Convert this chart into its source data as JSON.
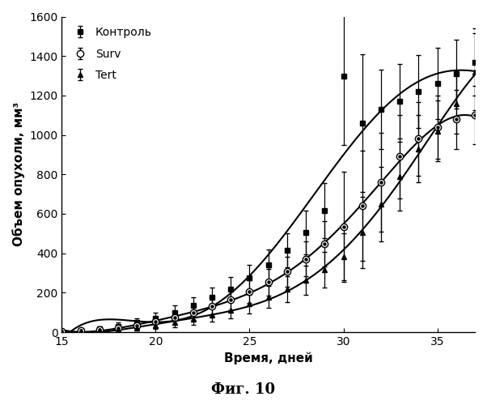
{
  "title": "",
  "xlabel": "Время, дней",
  "ylabel": "Объем опухоли, мм³",
  "caption": "Фиг. 10",
  "xlim": [
    15,
    37
  ],
  "ylim": [
    0,
    1600
  ],
  "xticks": [
    15,
    20,
    25,
    30,
    35
  ],
  "yticks": [
    0,
    200,
    400,
    600,
    800,
    1000,
    1200,
    1400,
    1600
  ],
  "legend_labels": [
    "Контроль",
    "Surv",
    "Tert"
  ],
  "control_x": [
    15,
    16,
    17,
    18,
    19,
    20,
    21,
    22,
    23,
    24,
    25,
    26,
    27,
    28,
    29,
    30,
    31,
    32,
    33,
    34,
    35,
    36,
    37
  ],
  "control_y": [
    5,
    10,
    18,
    30,
    48,
    72,
    100,
    135,
    175,
    220,
    275,
    340,
    415,
    505,
    615,
    1300,
    1060,
    1130,
    1170,
    1220,
    1260,
    1310,
    1370
  ],
  "control_yerr": [
    4,
    7,
    12,
    18,
    22,
    28,
    35,
    42,
    50,
    58,
    68,
    78,
    88,
    110,
    140,
    350,
    350,
    200,
    190,
    185,
    180,
    175,
    170
  ],
  "surv_x": [
    15,
    16,
    17,
    18,
    19,
    20,
    21,
    22,
    23,
    24,
    25,
    26,
    27,
    28,
    29,
    30,
    31,
    32,
    33,
    34,
    35,
    36,
    37
  ],
  "surv_y": [
    5,
    8,
    13,
    22,
    35,
    52,
    74,
    100,
    130,
    165,
    205,
    253,
    308,
    372,
    446,
    535,
    640,
    760,
    890,
    980,
    1040,
    1080,
    1100
  ],
  "surv_yerr": [
    3,
    6,
    10,
    15,
    20,
    25,
    32,
    38,
    46,
    52,
    58,
    66,
    76,
    90,
    115,
    280,
    280,
    250,
    210,
    185,
    160,
    150,
    148
  ],
  "tert_x": [
    15,
    16,
    17,
    18,
    19,
    20,
    21,
    22,
    23,
    24,
    25,
    26,
    27,
    28,
    29,
    30,
    31,
    32,
    33,
    34,
    35,
    36,
    37
  ],
  "tert_y": [
    3,
    5,
    8,
    14,
    22,
    33,
    48,
    66,
    88,
    113,
    143,
    178,
    218,
    264,
    318,
    382,
    505,
    650,
    790,
    930,
    1020,
    1160,
    1320
  ],
  "tert_yerr": [
    2,
    4,
    7,
    10,
    14,
    18,
    24,
    28,
    36,
    42,
    48,
    56,
    64,
    74,
    90,
    120,
    180,
    190,
    175,
    170,
    155,
    155,
    195
  ],
  "background_color": "#ffffff",
  "line_color": "#000000",
  "fontsize_label": 11,
  "fontsize_tick": 10,
  "fontsize_legend": 10,
  "fontsize_caption": 13
}
